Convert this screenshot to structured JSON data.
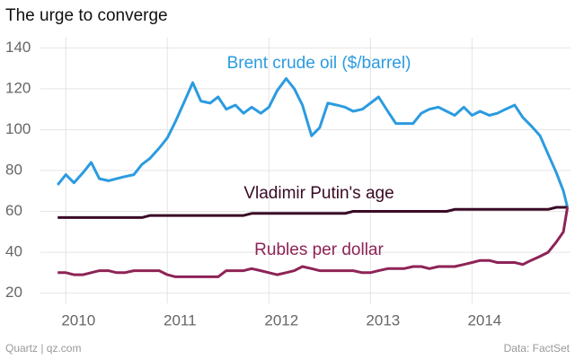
{
  "chart_data": {
    "type": "line",
    "title": "The urge to converge",
    "source": "Data: FactSet",
    "credit": "Quartz | qz.com",
    "x": [
      2009.92,
      2010.0,
      2010.08,
      2010.17,
      2010.25,
      2010.33,
      2010.42,
      2010.5,
      2010.58,
      2010.67,
      2010.75,
      2010.83,
      2010.92,
      2011.0,
      2011.08,
      2011.17,
      2011.25,
      2011.33,
      2011.42,
      2011.5,
      2011.58,
      2011.67,
      2011.75,
      2011.83,
      2011.92,
      2012.0,
      2012.08,
      2012.17,
      2012.25,
      2012.33,
      2012.42,
      2012.5,
      2012.58,
      2012.67,
      2012.75,
      2012.83,
      2012.92,
      2013.0,
      2013.08,
      2013.17,
      2013.25,
      2013.33,
      2013.42,
      2013.5,
      2013.58,
      2013.67,
      2013.75,
      2013.83,
      2013.92,
      2014.0,
      2014.08,
      2014.17,
      2014.25,
      2014.33,
      2014.42,
      2014.5,
      2014.58,
      2014.67,
      2014.75,
      2014.83,
      2014.9,
      2014.94
    ],
    "series": [
      {
        "name": "Brent crude oil ($/barrel)",
        "color": "#2b9be0",
        "values": [
          73,
          78,
          74,
          79,
          84,
          76,
          75,
          76,
          77,
          78,
          83,
          86,
          91,
          96,
          104,
          114,
          123,
          114,
          113,
          116,
          110,
          112,
          108,
          111,
          108,
          111,
          119,
          125,
          120,
          112,
          97,
          101,
          113,
          112,
          111,
          109,
          110,
          113,
          116,
          109,
          103,
          103,
          103,
          108,
          110,
          111,
          109,
          107,
          111,
          107,
          109,
          107,
          108,
          110,
          112,
          106,
          102,
          97,
          88,
          79,
          70,
          62
        ]
      },
      {
        "name": "Vladimir Putin's age",
        "color": "#3a0a25",
        "values": [
          57,
          57,
          57,
          57,
          57,
          57,
          57,
          57,
          57,
          57,
          57,
          58,
          58,
          58,
          58,
          58,
          58,
          58,
          58,
          58,
          58,
          58,
          58,
          59,
          59,
          59,
          59,
          59,
          59,
          59,
          59,
          59,
          59,
          59,
          59,
          60,
          60,
          60,
          60,
          60,
          60,
          60,
          60,
          60,
          60,
          60,
          60,
          61,
          61,
          61,
          61,
          61,
          61,
          61,
          61,
          61,
          61,
          61,
          61,
          62,
          62,
          62
        ]
      },
      {
        "name": "Rubles per dollar",
        "color": "#8e2356",
        "values": [
          30,
          30,
          29,
          29,
          30,
          31,
          31,
          30,
          30,
          31,
          31,
          31,
          31,
          29,
          28,
          28,
          28,
          28,
          28,
          28,
          31,
          31,
          31,
          32,
          31,
          30,
          29,
          30,
          31,
          33,
          32,
          31,
          31,
          31,
          31,
          31,
          30,
          30,
          31,
          32,
          32,
          32,
          33,
          33,
          32,
          33,
          33,
          33,
          34,
          35,
          36,
          36,
          35,
          35,
          35,
          34,
          36,
          38,
          40,
          45,
          50,
          62
        ]
      }
    ],
    "xlim": [
      2009.75,
      2014.97
    ],
    "xticks": [
      2010,
      2011,
      2012,
      2013,
      2014
    ],
    "ylim": [
      15,
      145
    ],
    "yticks": [
      20,
      40,
      60,
      80,
      100,
      120,
      140
    ],
    "grid": true
  }
}
